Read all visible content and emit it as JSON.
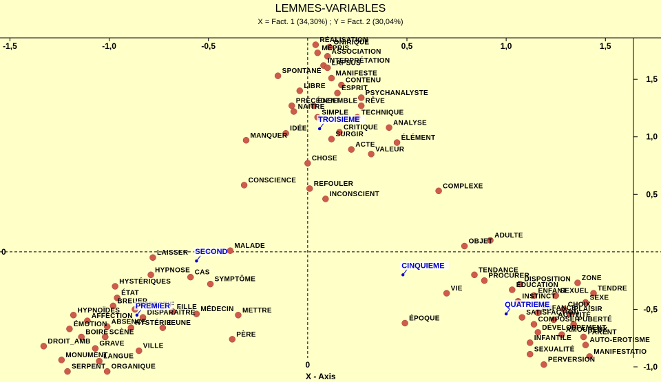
{
  "chart_data": {
    "type": "scatter",
    "title": "LEMMES-VARIABLES",
    "subtitle": "X = Fact. 1 (34,30%) ; Y = Fact. 2 (30,04%)",
    "xlabel": "X - Axis",
    "xlim": [
      -1.55,
      1.78
    ],
    "ylim": [
      -1.03,
      1.92
    ],
    "x_ticks": [
      -1.5,
      -1.0,
      -0.5,
      0,
      0.5,
      1.0,
      1.5
    ],
    "x_tick_labels": [
      "-1,5",
      "-1,0",
      "-0,5",
      "0",
      "0,5",
      "1,0",
      "1,5"
    ],
    "y_ticks": [
      1.5,
      1.0,
      0.5,
      0,
      -0.5,
      -1.0
    ],
    "y_tick_labels": [
      "1,5",
      "1,0",
      "0,5",
      "0",
      "-0,5",
      "-1,0"
    ],
    "marker_color": "#cd5c4c",
    "supplementary_color": "#0000cc",
    "points": [
      {
        "label": "RÉALISATION",
        "x": 0.04,
        "y": 1.8
      },
      {
        "label": "ONIRIQUE",
        "x": 0.11,
        "y": 1.78
      },
      {
        "label": "MÉPRIS",
        "x": 0.05,
        "y": 1.73
      },
      {
        "label": "ASSOCIATION",
        "x": 0.1,
        "y": 1.7
      },
      {
        "label": "INTERPRÉTATION",
        "x": 0.08,
        "y": 1.62
      },
      {
        "label": "LAPSUS",
        "x": 0.1,
        "y": 1.6
      },
      {
        "label": "SPONTANÉ",
        "x": -0.15,
        "y": 1.53
      },
      {
        "label": "MANIFESTE",
        "x": 0.12,
        "y": 1.51
      },
      {
        "label": "CONTENU",
        "x": 0.17,
        "y": 1.45
      },
      {
        "label": "LIBRE",
        "x": -0.04,
        "y": 1.4
      },
      {
        "label": "ESPRIT",
        "x": 0.15,
        "y": 1.38
      },
      {
        "label": "PSYCHANALYSTE",
        "x": 0.27,
        "y": 1.34
      },
      {
        "label": "PRÉCÉDENT",
        "x": -0.08,
        "y": 1.27
      },
      {
        "label": "ENSEMBLE",
        "x": 0.03,
        "y": 1.27
      },
      {
        "label": "RÊVE",
        "x": 0.27,
        "y": 1.27
      },
      {
        "label": "NAÎTRE",
        "x": -0.07,
        "y": 1.22
      },
      {
        "label": "SIMPLE",
        "x": 0.05,
        "y": 1.17
      },
      {
        "label": "TECHNIQUE",
        "x": 0.25,
        "y": 1.17
      },
      {
        "label": "ANALYSE",
        "x": 0.41,
        "y": 1.08
      },
      {
        "label": "IDÉE",
        "x": -0.11,
        "y": 1.03
      },
      {
        "label": "CRITIQUE",
        "x": 0.16,
        "y": 1.04
      },
      {
        "label": "MANQUER",
        "x": -0.31,
        "y": 0.97
      },
      {
        "label": "SURGIR",
        "x": 0.12,
        "y": 0.98
      },
      {
        "label": "ÉLÉMENT",
        "x": 0.45,
        "y": 0.95
      },
      {
        "label": "ACTE",
        "x": 0.22,
        "y": 0.89
      },
      {
        "label": "VALEUR",
        "x": 0.32,
        "y": 0.85
      },
      {
        "label": "CHOSE",
        "x": 0.0,
        "y": 0.77
      },
      {
        "label": "CONSCIENCE",
        "x": -0.32,
        "y": 0.58
      },
      {
        "label": "REFOULER",
        "x": 0.01,
        "y": 0.55
      },
      {
        "label": "COMPLEXE",
        "x": 0.66,
        "y": 0.53
      },
      {
        "label": "INCONSCIENT",
        "x": 0.09,
        "y": 0.46
      },
      {
        "label": "ADULTE",
        "x": 0.92,
        "y": 0.1
      },
      {
        "label": "OBJET",
        "x": 0.79,
        "y": 0.05
      },
      {
        "label": "MALADE",
        "x": -0.39,
        "y": 0.01
      },
      {
        "label": "LAISSER",
        "x": -0.78,
        "y": -0.05
      },
      {
        "label": "HYPNOSE",
        "x": -0.79,
        "y": -0.2
      },
      {
        "label": "CAS",
        "x": -0.59,
        "y": -0.22
      },
      {
        "label": "SYMPTÔME",
        "x": -0.49,
        "y": -0.28
      },
      {
        "label": "TENDANCE",
        "x": 0.84,
        "y": -0.2
      },
      {
        "label": "PROCURER",
        "x": 0.89,
        "y": -0.25
      },
      {
        "label": "DISPOSITION",
        "x": 1.07,
        "y": -0.28
      },
      {
        "label": "ZONE",
        "x": 1.36,
        "y": -0.27
      },
      {
        "label": "VIE",
        "x": 0.7,
        "y": -0.36
      },
      {
        "label": "ÉDUCATION",
        "x": 1.03,
        "y": -0.33
      },
      {
        "label": "TENDRE",
        "x": 1.44,
        "y": -0.36
      },
      {
        "label": "ENFANT",
        "x": 1.14,
        "y": -0.38
      },
      {
        "label": "SEXUEL",
        "x": 1.25,
        "y": -0.38
      },
      {
        "label": "SEXE",
        "x": 1.4,
        "y": -0.44
      },
      {
        "label": "INSTINCT",
        "x": 1.06,
        "y": -0.43
      },
      {
        "label": "CHOIX",
        "x": 1.29,
        "y": -0.5
      },
      {
        "label": "ENFANCE",
        "x": 1.16,
        "y": -0.53
      },
      {
        "label": "PLAISIR",
        "x": 1.32,
        "y": -0.54
      },
      {
        "label": "SATISFACTION",
        "x": 1.08,
        "y": -0.57
      },
      {
        "label": "ACTIVITÉ",
        "x": 1.24,
        "y": -0.59
      },
      {
        "label": "COMPOSER",
        "x": 1.14,
        "y": -0.63
      },
      {
        "label": "PUBERTÉ",
        "x": 1.34,
        "y": -0.63
      },
      {
        "label": "DÉVELOPPEMENT",
        "x": 1.16,
        "y": -0.7
      },
      {
        "label": "AMOUREUX",
        "x": 1.28,
        "y": -0.72
      },
      {
        "label": "PARENT",
        "x": 1.39,
        "y": -0.74
      },
      {
        "label": "INFANTILE",
        "x": 1.12,
        "y": -0.79
      },
      {
        "label": "AUTO-EROTISME",
        "x": 1.4,
        "y": -0.81
      },
      {
        "label": "SEXUALITÉ",
        "x": 1.12,
        "y": -0.89
      },
      {
        "label": "MANIFESTATIO",
        "x": 1.42,
        "y": -0.91
      },
      {
        "label": "PERVERSION",
        "x": 1.19,
        "y": -0.98
      },
      {
        "label": "ÉPOQUE",
        "x": 0.49,
        "y": -0.62
      },
      {
        "label": "HYSTÉRIQUES",
        "x": -0.97,
        "y": -0.3
      },
      {
        "label": "ÉTAT",
        "x": -0.96,
        "y": -0.4
      },
      {
        "label": "AFFECTIF",
        "x": -0.87,
        "y": -0.5
      },
      {
        "label": "FILLE",
        "x": -0.68,
        "y": -0.52
      },
      {
        "label": "MÉDECIN",
        "x": -0.56,
        "y": -0.54
      },
      {
        "label": "METTRE",
        "x": -0.35,
        "y": -0.55
      },
      {
        "label": "HYPNOÏDES",
        "x": -1.18,
        "y": -0.55
      },
      {
        "label": "BREUER",
        "x": -0.98,
        "y": -0.47
      },
      {
        "label": "AFFECTION",
        "x": -1.11,
        "y": -0.6
      },
      {
        "label": "DISPARAÎTRE",
        "x": -0.83,
        "y": -0.57
      },
      {
        "label": "ABSENCE",
        "x": -1.01,
        "y": -0.65
      },
      {
        "label": "HYSTÉRIE",
        "x": -0.89,
        "y": -0.66
      },
      {
        "label": "JEUNE",
        "x": -0.73,
        "y": -0.66
      },
      {
        "label": "ÉMOTION",
        "x": -1.2,
        "y": -0.67
      },
      {
        "label": "BOIRE",
        "x": -1.14,
        "y": -0.74
      },
      {
        "label": "SCÈNE",
        "x": -1.02,
        "y": -0.74
      },
      {
        "label": "PÈRE",
        "x": -0.38,
        "y": -0.76
      },
      {
        "label": "DROIT_AMB",
        "x": -1.33,
        "y": -0.82
      },
      {
        "label": "GRAVE",
        "x": -1.07,
        "y": -0.84
      },
      {
        "label": "VILLE",
        "x": -0.85,
        "y": -0.86
      },
      {
        "label": "MONUMENT",
        "x": -1.24,
        "y": -0.94
      },
      {
        "label": "LANGUE",
        "x": -1.05,
        "y": -0.95
      },
      {
        "label": "SERPENT",
        "x": -1.21,
        "y": -1.04
      },
      {
        "label": "ORGANIQUE",
        "x": -1.01,
        "y": -1.04
      }
    ],
    "supplementary": [
      {
        "label": "TROISIEME",
        "x": 0.06,
        "y": 1.07
      },
      {
        "label": "SECOND",
        "x": -0.56,
        "y": -0.08
      },
      {
        "label": "CINQUIEME",
        "x": 0.48,
        "y": -0.2
      },
      {
        "label": "QUATRIEME",
        "x": 1.0,
        "y": -0.54
      },
      {
        "label": "PREMIER",
        "x": -0.86,
        "y": -0.55
      }
    ]
  }
}
